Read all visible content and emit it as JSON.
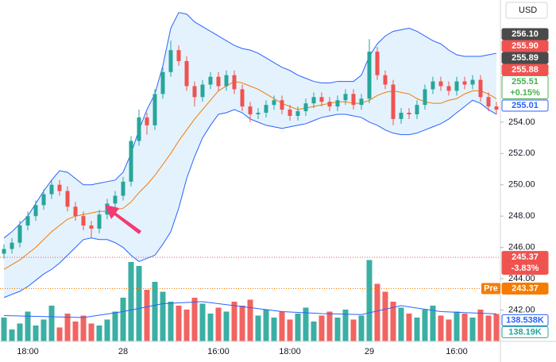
{
  "chart_data": {
    "type": "candlestick",
    "currency": "USD",
    "up_color": "#26a69a",
    "down_color": "#ef5350",
    "ylim": [
      240,
      261.8
    ],
    "yticks": [
      {
        "value": 242,
        "label": "242.00"
      },
      {
        "value": 244,
        "label": "244.00"
      },
      {
        "value": 246,
        "label": "246.00"
      },
      {
        "value": 248,
        "label": "248.00"
      },
      {
        "value": 250,
        "label": "250.00"
      },
      {
        "value": 252,
        "label": "252.00"
      },
      {
        "value": 254,
        "label": "254.00"
      }
    ],
    "y2lim": [
      0,
      560000
    ],
    "categories": [
      null,
      null,
      null,
      "18:00",
      null,
      null,
      null,
      null,
      null,
      null,
      null,
      null,
      null,
      null,
      null,
      "28",
      null,
      null,
      null,
      null,
      null,
      null,
      null,
      null,
      null,
      null,
      null,
      "16:00",
      null,
      null,
      null,
      null,
      null,
      null,
      null,
      null,
      "18:00",
      null,
      null,
      null,
      null,
      null,
      null,
      null,
      null,
      null,
      "29",
      null,
      null,
      null,
      null,
      null,
      null,
      null,
      null,
      null,
      null,
      "16:00",
      null,
      null,
      null,
      null,
      null
    ],
    "open": [
      245.6,
      245.9,
      246.3,
      247.4,
      248.0,
      248.7,
      249.4,
      250.0,
      249.6,
      248.6,
      248.0,
      247.4,
      247.2,
      248.1,
      248.8,
      249.3,
      250.2,
      252.8,
      254.3,
      253.8,
      255.8,
      257.2,
      258.6,
      257.9,
      256.3,
      255.6,
      256.4,
      256.9,
      256.3,
      257.0,
      256.1,
      255.0,
      254.5,
      254.6,
      255.1,
      255.4,
      254.8,
      254.4,
      254.7,
      255.2,
      255.6,
      255.3,
      255.0,
      255.4,
      255.8,
      255.1,
      255.5,
      258.5,
      257.0,
      256.4,
      254.2,
      254.6,
      254.5,
      255.1,
      256.1,
      256.6,
      256.3,
      256.0,
      256.6,
      256.4,
      256.7,
      255.6,
      255.0
    ],
    "high": [
      246.2,
      246.6,
      247.7,
      248.3,
      249.0,
      249.7,
      250.3,
      250.3,
      249.9,
      248.9,
      248.3,
      247.7,
      248.4,
      249.1,
      249.6,
      250.5,
      253.1,
      254.8,
      254.6,
      256.1,
      257.5,
      259.2,
      258.9,
      258.2,
      256.6,
      256.7,
      257.2,
      257.2,
      257.3,
      257.3,
      256.4,
      255.3,
      254.9,
      255.4,
      255.7,
      255.7,
      255.1,
      255.0,
      255.5,
      255.9,
      255.9,
      255.6,
      255.7,
      256.1,
      256.1,
      255.8,
      259.3,
      258.8,
      257.3,
      256.7,
      254.9,
      254.9,
      255.4,
      256.4,
      256.9,
      256.9,
      256.6,
      256.9,
      256.9,
      257.0,
      257.0,
      255.9,
      255.3
    ],
    "low": [
      245.3,
      245.6,
      246.0,
      247.1,
      247.7,
      248.4,
      249.1,
      249.3,
      248.3,
      247.7,
      247.1,
      246.6,
      246.9,
      247.8,
      248.5,
      249.0,
      249.9,
      252.5,
      253.2,
      253.5,
      255.5,
      256.9,
      257.6,
      256.0,
      255.0,
      255.3,
      256.1,
      256.0,
      256.0,
      255.8,
      254.7,
      254.0,
      254.2,
      254.3,
      254.8,
      254.5,
      254.1,
      254.1,
      254.4,
      254.9,
      255.0,
      254.7,
      254.7,
      255.1,
      254.8,
      254.8,
      255.2,
      256.7,
      256.1,
      253.8,
      253.9,
      254.2,
      254.2,
      254.8,
      255.8,
      256.0,
      255.7,
      255.7,
      256.1,
      256.1,
      255.3,
      254.7,
      254.5
    ],
    "close": [
      245.9,
      246.3,
      247.4,
      248.0,
      248.7,
      249.4,
      250.0,
      249.6,
      248.6,
      248.0,
      247.4,
      247.2,
      248.1,
      248.8,
      249.3,
      250.2,
      252.8,
      254.3,
      253.8,
      255.8,
      257.2,
      258.6,
      257.9,
      256.3,
      255.6,
      256.4,
      256.9,
      256.3,
      257.0,
      256.1,
      255.0,
      254.5,
      254.6,
      255.1,
      255.4,
      254.8,
      254.4,
      254.7,
      255.2,
      255.6,
      255.3,
      255.0,
      255.4,
      255.8,
      255.1,
      255.5,
      258.5,
      257.0,
      256.4,
      254.2,
      254.6,
      254.5,
      255.1,
      256.1,
      256.6,
      256.3,
      256.0,
      256.6,
      256.4,
      256.7,
      255.6,
      255.0,
      254.8
    ],
    "volume": [
      120000,
      60000,
      90000,
      150000,
      80000,
      110000,
      180000,
      70000,
      140000,
      100000,
      130000,
      90000,
      80000,
      110000,
      150000,
      220000,
      400000,
      380000,
      260000,
      300000,
      250000,
      200000,
      180000,
      160000,
      220000,
      190000,
      140000,
      170000,
      150000,
      200000,
      180000,
      210000,
      130000,
      160000,
      120000,
      150000,
      110000,
      140000,
      170000,
      100000,
      130000,
      150000,
      120000,
      160000,
      110000,
      130000,
      410000,
      290000,
      250000,
      200000,
      170000,
      140000,
      120000,
      160000,
      180000,
      130000,
      110000,
      150000,
      140000,
      120000,
      160000,
      130000,
      138190
    ],
    "bands": {
      "upper_color": "#2962ff",
      "middle_color": "#f57c00",
      "upper": [
        246.6,
        247.0,
        247.5,
        248.0,
        248.8,
        249.6,
        250.3,
        250.9,
        250.8,
        250.4,
        250.0,
        250.0,
        250.1,
        250.2,
        250.3,
        250.8,
        252.0,
        253.5,
        254.8,
        255.8,
        257.6,
        260.0,
        261.0,
        260.9,
        260.4,
        260.1,
        259.8,
        259.5,
        259.2,
        258.9,
        258.7,
        258.6,
        258.4,
        258.1,
        257.8,
        257.5,
        257.3,
        257.0,
        256.8,
        256.6,
        256.5,
        256.5,
        256.6,
        256.6,
        256.6,
        257.0,
        258.2,
        259.0,
        259.5,
        259.8,
        259.9,
        260.0,
        259.8,
        259.5,
        259.2,
        259.0,
        258.6,
        258.3,
        258.2,
        258.2,
        258.2,
        258.3,
        258.4
      ],
      "middle": [
        244.6,
        244.9,
        245.2,
        245.6,
        246.0,
        246.5,
        247.0,
        247.4,
        247.8,
        248.0,
        248.1,
        248.2,
        248.3,
        248.3,
        248.4,
        248.5,
        248.9,
        249.5,
        250.0,
        250.6,
        251.3,
        252.0,
        252.8,
        253.5,
        254.2,
        254.8,
        255.4,
        256.0,
        256.3,
        256.6,
        256.5,
        256.3,
        256.1,
        255.8,
        255.5,
        255.2,
        255.0,
        254.8,
        254.9,
        255.0,
        255.1,
        255.2,
        255.3,
        255.3,
        255.2,
        255.2,
        255.4,
        255.7,
        255.9,
        256.0,
        255.9,
        255.8,
        255.5,
        255.3,
        255.2,
        255.2,
        255.4,
        255.5,
        255.8,
        256.0,
        256.0,
        255.8,
        255.5
      ],
      "lower": [
        242.8,
        243.0,
        243.2,
        243.5,
        243.9,
        244.3,
        244.6,
        245.0,
        245.5,
        246.0,
        246.5,
        246.6,
        246.5,
        246.5,
        246.3,
        246.0,
        245.5,
        245.1,
        245.3,
        245.5,
        246.2,
        247.0,
        248.5,
        250.4,
        251.8,
        253.0,
        253.8,
        254.5,
        254.6,
        254.8,
        254.6,
        254.2,
        254.0,
        253.8,
        253.7,
        253.6,
        253.7,
        253.8,
        253.9,
        254.1,
        254.3,
        254.4,
        254.5,
        254.5,
        254.4,
        254.3,
        254.0,
        253.8,
        253.5,
        253.3,
        253.2,
        253.2,
        253.3,
        253.5,
        253.7,
        253.9,
        254.2,
        254.6,
        255.0,
        255.4,
        255.2,
        254.8,
        254.5
      ]
    },
    "volume_ma": {
      "color": "#2962ff",
      "x": [
        0,
        5,
        10,
        15,
        20,
        25,
        30,
        35,
        40,
        45,
        50,
        55,
        62
      ],
      "values": [
        130000,
        125000,
        120000,
        150000,
        190000,
        200000,
        175000,
        150000,
        140000,
        135000,
        180000,
        150000,
        138538
      ]
    },
    "price_labels": [
      {
        "value": 256.1,
        "label": "256.10",
        "color": "#4a4a4a"
      },
      {
        "value": 255.9,
        "label": "255.90",
        "color": "#ef5350"
      },
      {
        "value": 255.89,
        "label": "255.89",
        "color": "#4a4a4a"
      },
      {
        "value": 255.88,
        "label": "255.88",
        "color": "#ef5350"
      },
      {
        "value": 255.51,
        "label": "255.51",
        "change": 0.15,
        "change_label": "+0.15%",
        "color": "#4caf50"
      },
      {
        "value": 255.01,
        "label": "255.01",
        "color": "#2962ff"
      }
    ],
    "session_close": {
      "value": 245.37,
      "label": "245.37",
      "change": -3.83,
      "change_label": "-3.83%",
      "color": "#ef5350"
    },
    "premarket": {
      "tag": "Pre",
      "value": 243.37,
      "label": "243.37",
      "color": "#f57c00"
    },
    "volume_labels": [
      {
        "value": 138538,
        "label": "138.538K",
        "color": "#2962ff"
      },
      {
        "value": 138190,
        "label": "138.19K",
        "color": "#26a69a"
      }
    ]
  }
}
